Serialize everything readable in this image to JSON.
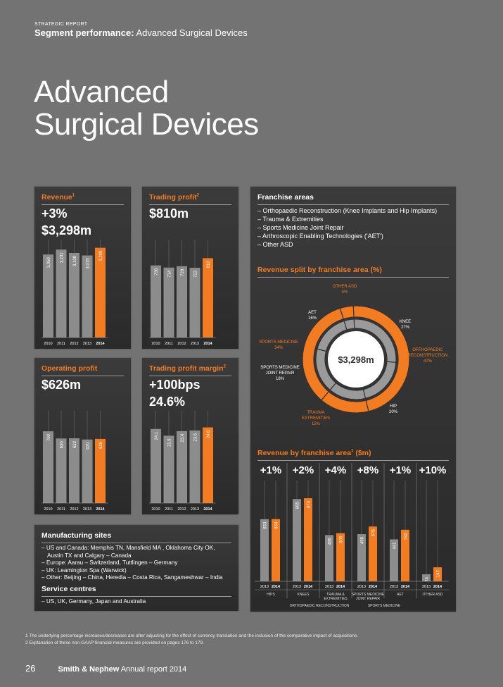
{
  "header": {
    "kicker": "STRATEGIC REPORT",
    "section_bold": "Segment performance:",
    "section_rest": " Advanced Surgical Devices"
  },
  "title_line1": "Advanced",
  "title_line2": "Surgical Devices",
  "revenue_panel": {
    "title": "Revenue",
    "sup": "1",
    "stat1": "+3%",
    "stat2": "$3,298m",
    "chart_data": {
      "type": "bar",
      "categories": [
        "2010",
        "2011",
        "2012",
        "2013",
        "2014"
      ],
      "values": [
        3050,
        3231,
        3108,
        3015,
        3298
      ],
      "labels": [
        "3,050",
        "3,231",
        "3,108",
        "3,015",
        "3,298"
      ],
      "highlight_last": true,
      "ylim": [
        0,
        3600
      ]
    }
  },
  "trading_profit_panel": {
    "title": "Trading profit",
    "sup": "2",
    "stat1": "$810m",
    "chart_data": {
      "type": "bar",
      "categories": [
        "2010",
        "2011",
        "2012",
        "2013",
        "2014"
      ],
      "values": [
        736,
        714,
        728,
        712,
        810
      ],
      "labels": [
        "736",
        "714",
        "728",
        "712",
        "810"
      ],
      "highlight_last": true,
      "ylim": [
        0,
        1000
      ]
    }
  },
  "operating_profit_panel": {
    "title": "Operating profit",
    "stat1": "$626m",
    "chart_data": {
      "type": "bar",
      "categories": [
        "2010",
        "2011",
        "2012",
        "2013",
        "2014"
      ],
      "values": [
        700,
        630,
        632,
        620,
        626
      ],
      "labels": [
        "700",
        "630",
        "632",
        "620",
        "626"
      ],
      "highlight_last": true,
      "ylim": [
        0,
        900
      ]
    }
  },
  "margin_panel": {
    "title": "Trading profit margin",
    "sup": "2",
    "stat1": "+100bps",
    "stat2": "24.6%",
    "chart_data": {
      "type": "bar",
      "categories": [
        "2010",
        "2011",
        "2012",
        "2013",
        "2014"
      ],
      "values": [
        24.1,
        21.9,
        23.4,
        23.6,
        24.6
      ],
      "labels": [
        "24.1",
        "21.9",
        "23.4",
        "23.6",
        "24.6"
      ],
      "highlight_last": true,
      "ylim": [
        0,
        30
      ]
    }
  },
  "manufacturing": {
    "title": "Manufacturing sites",
    "items": [
      "– US and Canada: Memphis TN, Mansfield MA , Oklahoma City OK,",
      "   Austin TX and Calgary – Canada",
      "– Europe: Aarau – Switzerland, Tuttlingen – Germany",
      "– UK: Leamington Spa (Warwick)",
      "– Other: Beijing – China, Heredia – Costa Rica, Sangameshwar – India"
    ],
    "service_title": "Service centres",
    "service_items": [
      "– US, UK, Germany, Japan and Australia"
    ]
  },
  "franchise": {
    "title": "Franchise areas",
    "items": [
      "– Orthopaedic Reconstruction (Knee Implants and Hip Implants)",
      "– Trauma & Extremities",
      "– Sports Medicine Joint Repair",
      "– Arthroscopic Enabling Technologies ('AET')",
      "– Other ASD"
    ],
    "split_title": "Revenue split by franchise area (%)",
    "center_label": "$3,298m",
    "donut": {
      "outer": [
        {
          "name": "ORTHOPAEDIC RECONSTRUCTION",
          "pct": "47%",
          "value": 47,
          "color": "#f47c20"
        },
        {
          "name": "TRAUMA EXTREMITIES",
          "pct": "15%",
          "value": 15,
          "color": "#f47c20"
        },
        {
          "name": "SPORTS MEDICINE",
          "pct": "34%",
          "value": 34,
          "color": "#f47c20"
        },
        {
          "name": "OTHER ASD",
          "pct": "4%",
          "value": 4,
          "color": "#f47c20"
        }
      ],
      "inner": [
        {
          "name": "KNEE",
          "pct": "27%",
          "value": 27,
          "color": "#9a9a9a"
        },
        {
          "name": "HIP",
          "pct": "20%",
          "value": 20,
          "color": "#9a9a9a"
        },
        {
          "name": "TRAUMA EXTREMITIES",
          "pct": "15%",
          "value": 15,
          "color": "#9a9a9a"
        },
        {
          "name": "SPORTS MEDICINE JOINT REPAIR",
          "pct": "18%",
          "value": 18,
          "color": "#9a9a9a"
        },
        {
          "name": "AET",
          "pct": "16%",
          "value": 16,
          "color": "#9a9a9a"
        },
        {
          "name": "OTHER ASD",
          "pct": "4%",
          "value": 4,
          "color": "#9a9a9a"
        }
      ]
    },
    "labels": {
      "other_asd": [
        "OTHER ASD",
        "4%"
      ],
      "knee": [
        "KNEE",
        "27%"
      ],
      "ortho": [
        "ORTHOPAEDIC",
        "RECONSTRUCTION",
        "47%"
      ],
      "hip": [
        "HIP",
        "20%"
      ],
      "trauma": [
        "TRAUMA",
        "EXTREMITIES",
        "15%"
      ],
      "smjr": [
        "SPORTS MEDICINE",
        "JOINT REPAIR",
        "18%"
      ],
      "sports": [
        "SPORTS MEDICINE",
        "34%"
      ],
      "aet": [
        "AET",
        "16%"
      ]
    },
    "by_area_title": "Revenue by franchise area",
    "by_area_sup": "1",
    "by_area_unit": " ($m)",
    "by_area_chart": {
      "type": "bar",
      "groups": [
        {
          "name": "HIPS",
          "change": "+1%",
          "values": [
            653,
            654
          ],
          "labels": [
            "653",
            "654"
          ]
        },
        {
          "name": "KNEES",
          "change": "+2%",
          "values": [
            865,
            873
          ],
          "labels": [
            "865",
            "873"
          ]
        },
        {
          "name": "TRAUMA & EXTREMITIES",
          "change": "+4%",
          "values": [
            486,
            506
          ],
          "labels": [
            "486",
            "506"
          ]
        },
        {
          "name": "SPORTS MEDICINE JOINT REPAIR",
          "change": "+8%",
          "values": [
            496,
            576
          ],
          "labels": [
            "496",
            "576"
          ]
        },
        {
          "name": "AET",
          "change": "+1%",
          "values": [
            441,
            542
          ],
          "labels": [
            "441",
            "542"
          ]
        },
        {
          "name": "OTHER ASD",
          "change": "+10%",
          "values": [
            74,
            147
          ],
          "labels": [
            "74",
            "147"
          ]
        }
      ],
      "years": [
        "2013",
        "2014"
      ],
      "group_line1": [
        "HIPS",
        "KNEES",
        "TRAUMA &",
        "SPORTS MEDICINE",
        "AET",
        "OTHER ASD"
      ],
      "group_line2": [
        "",
        "",
        "EXTREMITIES",
        "JOINT REPAIR",
        "",
        ""
      ],
      "bottom_left": "ORTHOPAEDIC RECONSTRUCTION",
      "bottom_right": "SPORTS MEDICINE",
      "ylim": [
        0,
        1000
      ]
    }
  },
  "footnotes": [
    "1   The underlying percentage increases/decreases are after adjusting for the effect of currency translation and the inclusion of the comparative impact of acquisitions.",
    "2   Explanation of these non-GAAP financial measures are provided on pages 176 to 179."
  ],
  "footer": {
    "page": "26",
    "brand": "Smith & Nephew",
    "rest": " Annual report 2014"
  },
  "colors": {
    "accent": "#f47c20",
    "bar": "#8c8c8c",
    "bg": "#737373"
  }
}
